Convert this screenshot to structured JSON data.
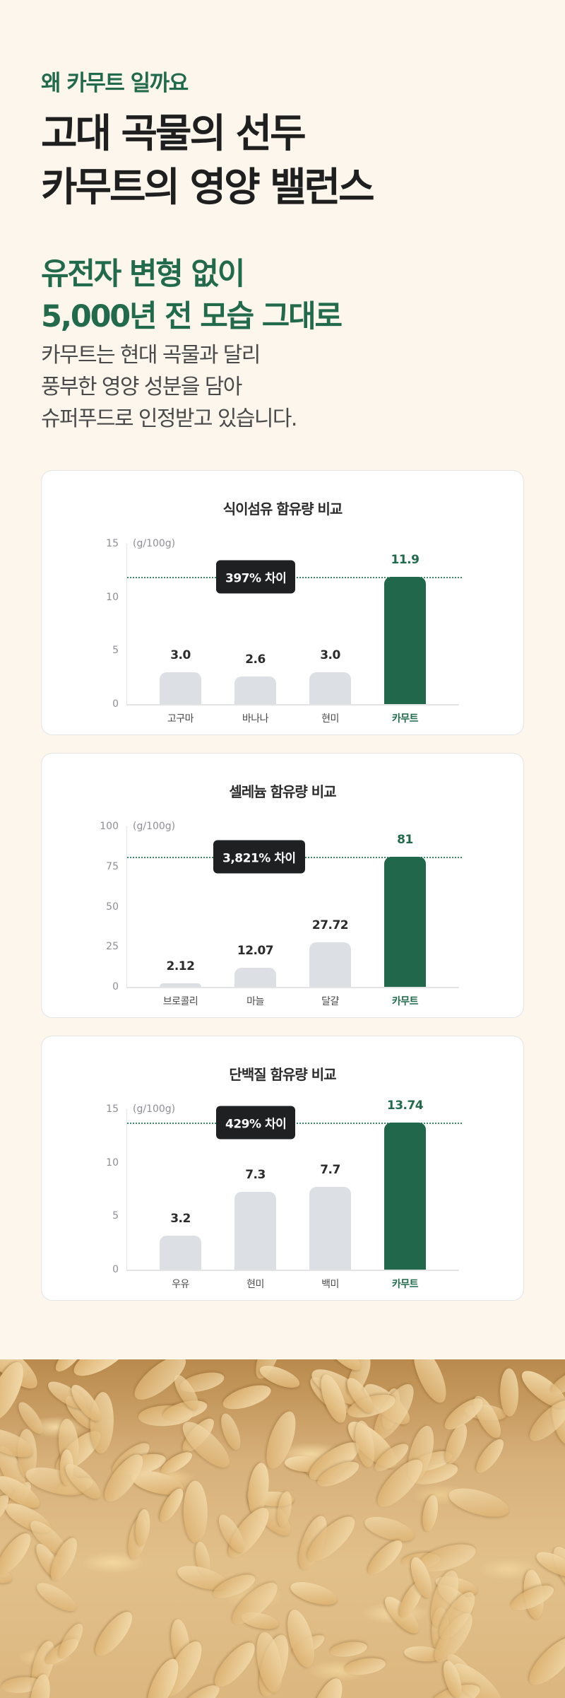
{
  "header": {
    "eyebrow": "왜 카무트 일까요",
    "headline_lines": [
      "고대 곡물의 선두",
      "카무트의 영양 밸런스"
    ],
    "sub_headline_lines": [
      "유전자 변형 없이",
      "5,000년 전 모습 그대로"
    ],
    "body_lines": [
      "카무트는 현대 곡물과 달리",
      "풍부한 영양 성분을 담아",
      "슈퍼푸드로 인정받고 있습니다."
    ]
  },
  "colors": {
    "background": "#fdf6ec",
    "accent_green": "#21674b",
    "bar_gray": "#dcdfe3",
    "badge_dark": "#1f2022",
    "text_dark": "#1f1f1f"
  },
  "photo": {
    "label": "kamut-grains-photo"
  },
  "chart_data": [
    {
      "type": "bar",
      "title": "식이섬유 함유량 비교",
      "unit": "(g/100g)",
      "ylim": [
        0,
        15
      ],
      "yticks": [
        "0",
        "5",
        "10",
        "15"
      ],
      "categories": [
        "고구마",
        "바나나",
        "현미",
        "카무트"
      ],
      "values": [
        3.0,
        2.6,
        3.0,
        11.9
      ],
      "value_labels": [
        "3.0",
        "2.6",
        "3.0",
        "11.9"
      ],
      "highlight_index": 3,
      "annotation": "397% 차이",
      "reference_line": 11.9,
      "legend": "none",
      "grid": false
    },
    {
      "type": "bar",
      "title": "셀레늄 함유량 비교",
      "unit": "(g/100g)",
      "ylim": [
        0,
        100
      ],
      "yticks": [
        "0",
        "25",
        "50",
        "75",
        "100"
      ],
      "categories": [
        "브로콜리",
        "마늘",
        "달걀",
        "카무트"
      ],
      "values": [
        2.12,
        12.07,
        27.72,
        81
      ],
      "value_labels": [
        "2.12",
        "12.07",
        "27.72",
        "81"
      ],
      "highlight_index": 3,
      "annotation": "3,821% 차이",
      "reference_line": 81,
      "legend": "none",
      "grid": false
    },
    {
      "type": "bar",
      "title": "단백질 함유량 비교",
      "unit": "(g/100g)",
      "ylim": [
        0,
        15
      ],
      "yticks": [
        "0",
        "5",
        "10",
        "15"
      ],
      "categories": [
        "우유",
        "현미",
        "백미",
        "카무트"
      ],
      "values": [
        3.2,
        7.3,
        7.7,
        13.74
      ],
      "value_labels": [
        "3.2",
        "7.3",
        "7.7",
        "13.74"
      ],
      "highlight_index": 3,
      "annotation": "429% 차이",
      "reference_line": 13.74,
      "legend": "none",
      "grid": false
    }
  ]
}
